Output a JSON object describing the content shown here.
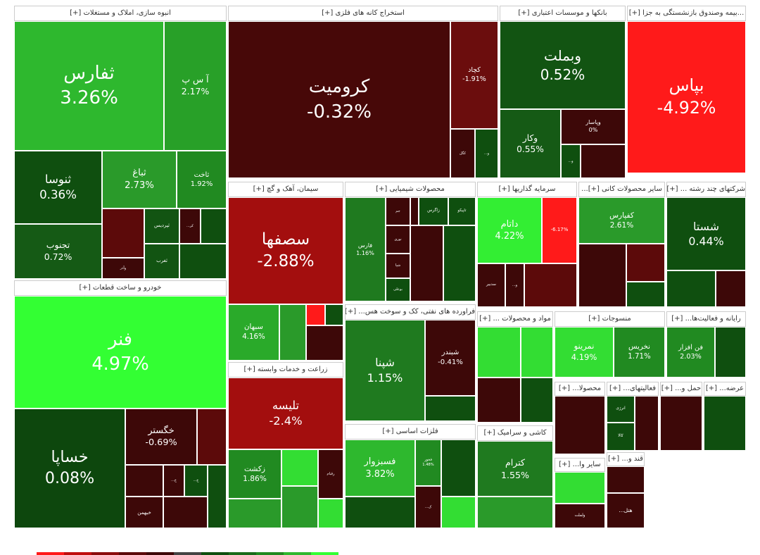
{
  "chart_data": {
    "type": "treemap",
    "sectors": [
      {
        "header": "انبوه سازی، املاک و مستغلات [+]",
        "tiles": [
          {
            "name": "ثفارس",
            "value": 3.26,
            "value_label": "3.26%",
            "color": "#2eb82e"
          },
          {
            "name": "آ س پ",
            "value": 2.17,
            "value_label": "2.17%",
            "color": "#28a028"
          },
          {
            "name": "ثنوسا",
            "value": 0.36,
            "value_label": "0.36%",
            "color": "#0f4f0f"
          },
          {
            "name": "تجنوب",
            "value": 0.72,
            "value_label": "0.72%",
            "color": "#155a15"
          },
          {
            "name": "ثباغ",
            "value": 2.73,
            "value_label": "2.73%",
            "color": "#2a9a2a"
          },
          {
            "name": "ثاخت",
            "value": 1.92,
            "value_label": "1.92%",
            "color": "#218a21"
          },
          {
            "name": "ثپردیس",
            "color": "#125412"
          },
          {
            "name": "کر...",
            "color": "#3d0808"
          },
          {
            "name": "ثغرب",
            "color": "#125412"
          },
          {
            "name": "وآذر",
            "color": "#3d0808"
          }
        ]
      },
      {
        "header": "خودرو و ساخت قطعات [+]",
        "tiles": [
          {
            "name": "فنر",
            "value": 4.97,
            "value_label": "4.97%",
            "color": "#33ff33"
          },
          {
            "name": "خساپا",
            "value": 0.08,
            "value_label": "0.08%",
            "color": "#0d470d"
          },
          {
            "name": "خگستر",
            "value": -0.69,
            "value_label": "-0.69%",
            "color": "#3d0808"
          },
          {
            "name": "خبهمن",
            "color": "#3d0808"
          },
          {
            "name": "خ...",
            "color": "#3d0808"
          },
          {
            "name": "خ...",
            "color": "#0f4f0f"
          }
        ]
      },
      {
        "header": "استخراج کانه های فلزی [+]",
        "tiles": [
          {
            "name": "کرومیت",
            "value": -0.32,
            "value_label": "-0.32%",
            "color": "#470808"
          },
          {
            "name": "کچاد",
            "value": -1.91,
            "value_label": "-1.91%",
            "color": "#6b0d0d"
          },
          {
            "name": "کگل",
            "color": "#3d0808"
          },
          {
            "name": "و...",
            "color": "#0f4f0f"
          }
        ]
      },
      {
        "header": "بانکها و موسسات اعتباری [+]",
        "tiles": [
          {
            "name": "وبملت",
            "value": 0.52,
            "value_label": "0.52%",
            "color": "#125412"
          },
          {
            "name": "وکار",
            "value": 0.55,
            "value_label": "0.55%",
            "color": "#155a15"
          },
          {
            "name": "وپاسار",
            "value": 0,
            "value_label": "0%",
            "color": "#3d0808"
          },
          {
            "name": "و...",
            "color": "#0f4f0f"
          }
        ]
      },
      {
        "header": "...بیمه وصندوق بازنشستگی به جزا [+]",
        "tiles": [
          {
            "name": "بپاس",
            "value": -4.92,
            "value_label": "-4.92%",
            "color": "#ff1a1a"
          }
        ]
      },
      {
        "header": "سیمان، آهک و گچ [+]",
        "tiles": [
          {
            "name": "سصفها",
            "value": -2.88,
            "value_label": "-2.88%",
            "color": "#a30e0e"
          },
          {
            "name": "سبهان",
            "value": 4.16,
            "value_label": "4.16%",
            "color": "#2aaa2a"
          }
        ]
      },
      {
        "header": "زراعت و خدمات وابسته [+]",
        "tiles": [
          {
            "name": "تلیسه",
            "value": -2.4,
            "value_label": "-2.4%",
            "color": "#a30e0e"
          },
          {
            "name": "زکشت",
            "value": 1.86,
            "value_label": "1.86%",
            "color": "#218a21"
          },
          {
            "name": "زقیام",
            "color": "#3d0808"
          }
        ]
      },
      {
        "header": "محصولات شیمیایی [+]",
        "tiles": [
          {
            "name": "فارس",
            "value": 1.16,
            "value_label": "1.16%",
            "color": "#1f7a1f"
          },
          {
            "name": "جم",
            "color": "#3d0808"
          },
          {
            "name": "زاگرس",
            "color": "#0f4f0f"
          },
          {
            "name": "تاپیکو",
            "color": "#0f4f0f"
          },
          {
            "name": "نوری",
            "color": "#3d0808"
          },
          {
            "name": "شپا",
            "color": "#3d0808"
          },
          {
            "name": "بوعلی",
            "color": "#0f4f0f"
          }
        ]
      },
      {
        "header": "فراورده های نفتی، کک و سوخت هس... [+]",
        "tiles": [
          {
            "name": "شپنا",
            "value": 1.15,
            "value_label": "1.15%",
            "color": "#1f7a1f"
          },
          {
            "name": "شبندر",
            "value": -0.41,
            "value_label": "-0.41%",
            "color": "#3d0808"
          }
        ]
      },
      {
        "header": "فلزات اساسی [+]",
        "tiles": [
          {
            "name": "فسبزوار",
            "value": 3.82,
            "value_label": "3.82%",
            "color": "#2eb82e"
          },
          {
            "name": "فخوز",
            "value": 1.48,
            "value_label": "1.48%",
            "color": "#218a21"
          },
          {
            "name": "ک...",
            "color": "#3d0808"
          }
        ]
      },
      {
        "header": "سرمایه گذاریها [+]",
        "tiles": [
          {
            "name": "داتام",
            "value": 4.22,
            "value_label": "4.22%",
            "color": "#33ee33"
          },
          {
            "value": -6.17,
            "value_label": "-6.17%",
            "color": "#ff1a1a"
          },
          {
            "name": "سدبیر",
            "color": "#3d0808"
          },
          {
            "name": "و...",
            "color": "#3d0808"
          }
        ]
      },
      {
        "header": "سایر محصولات کانی [+]...",
        "tiles": [
          {
            "name": "کفپارس",
            "value": 2.61,
            "value_label": "2.61%",
            "color": "#2a9a2a"
          }
        ]
      },
      {
        "header": "شرکتهای چند رشته ... [+]",
        "tiles": [
          {
            "name": "شستا",
            "value": 0.44,
            "value_label": "0.44%",
            "color": "#0f4f0f"
          }
        ]
      },
      {
        "header": "مواد و محصولات ... [+]",
        "tiles": []
      },
      {
        "header": "منسوجات [+]",
        "tiles": [
          {
            "name": "نمرینو",
            "value": 4.19,
            "value_label": "4.19%",
            "color": "#33dd33"
          },
          {
            "name": "نخریس",
            "value": 1.71,
            "value_label": "1.71%",
            "color": "#218a21"
          }
        ]
      },
      {
        "header": "رایانه و فعالیت‌ها... [+]",
        "tiles": [
          {
            "name": "فن افزار",
            "value": 2.03,
            "value_label": "2.03%",
            "color": "#218a21"
          }
        ]
      },
      {
        "header": "کاشی و سرامیک [+]",
        "tiles": [
          {
            "name": "کترام",
            "value": 1.55,
            "value_label": "1.55%",
            "color": "#1f7a1f"
          }
        ]
      },
      {
        "header": "محصولا... [+]",
        "tiles": []
      },
      {
        "header": "فعالیتهای... [+]",
        "tiles": [
          {
            "name": "انرژی",
            "color": "#0f4f0f"
          },
          {
            "name": "کالا",
            "color": "#0f4f0f"
          }
        ]
      },
      {
        "header": "حمل و... [+]",
        "tiles": []
      },
      {
        "header": "عرضه... [+]",
        "tiles": []
      },
      {
        "header": "سایر وا... [+]",
        "tiles": [
          {
            "name": "ولملت",
            "color": "#3d0808"
          }
        ]
      },
      {
        "header": "قند و... [+]",
        "tiles": [
          {
            "name": "هتل...",
            "color": "#3d0808"
          }
        ]
      }
    ]
  }
}
